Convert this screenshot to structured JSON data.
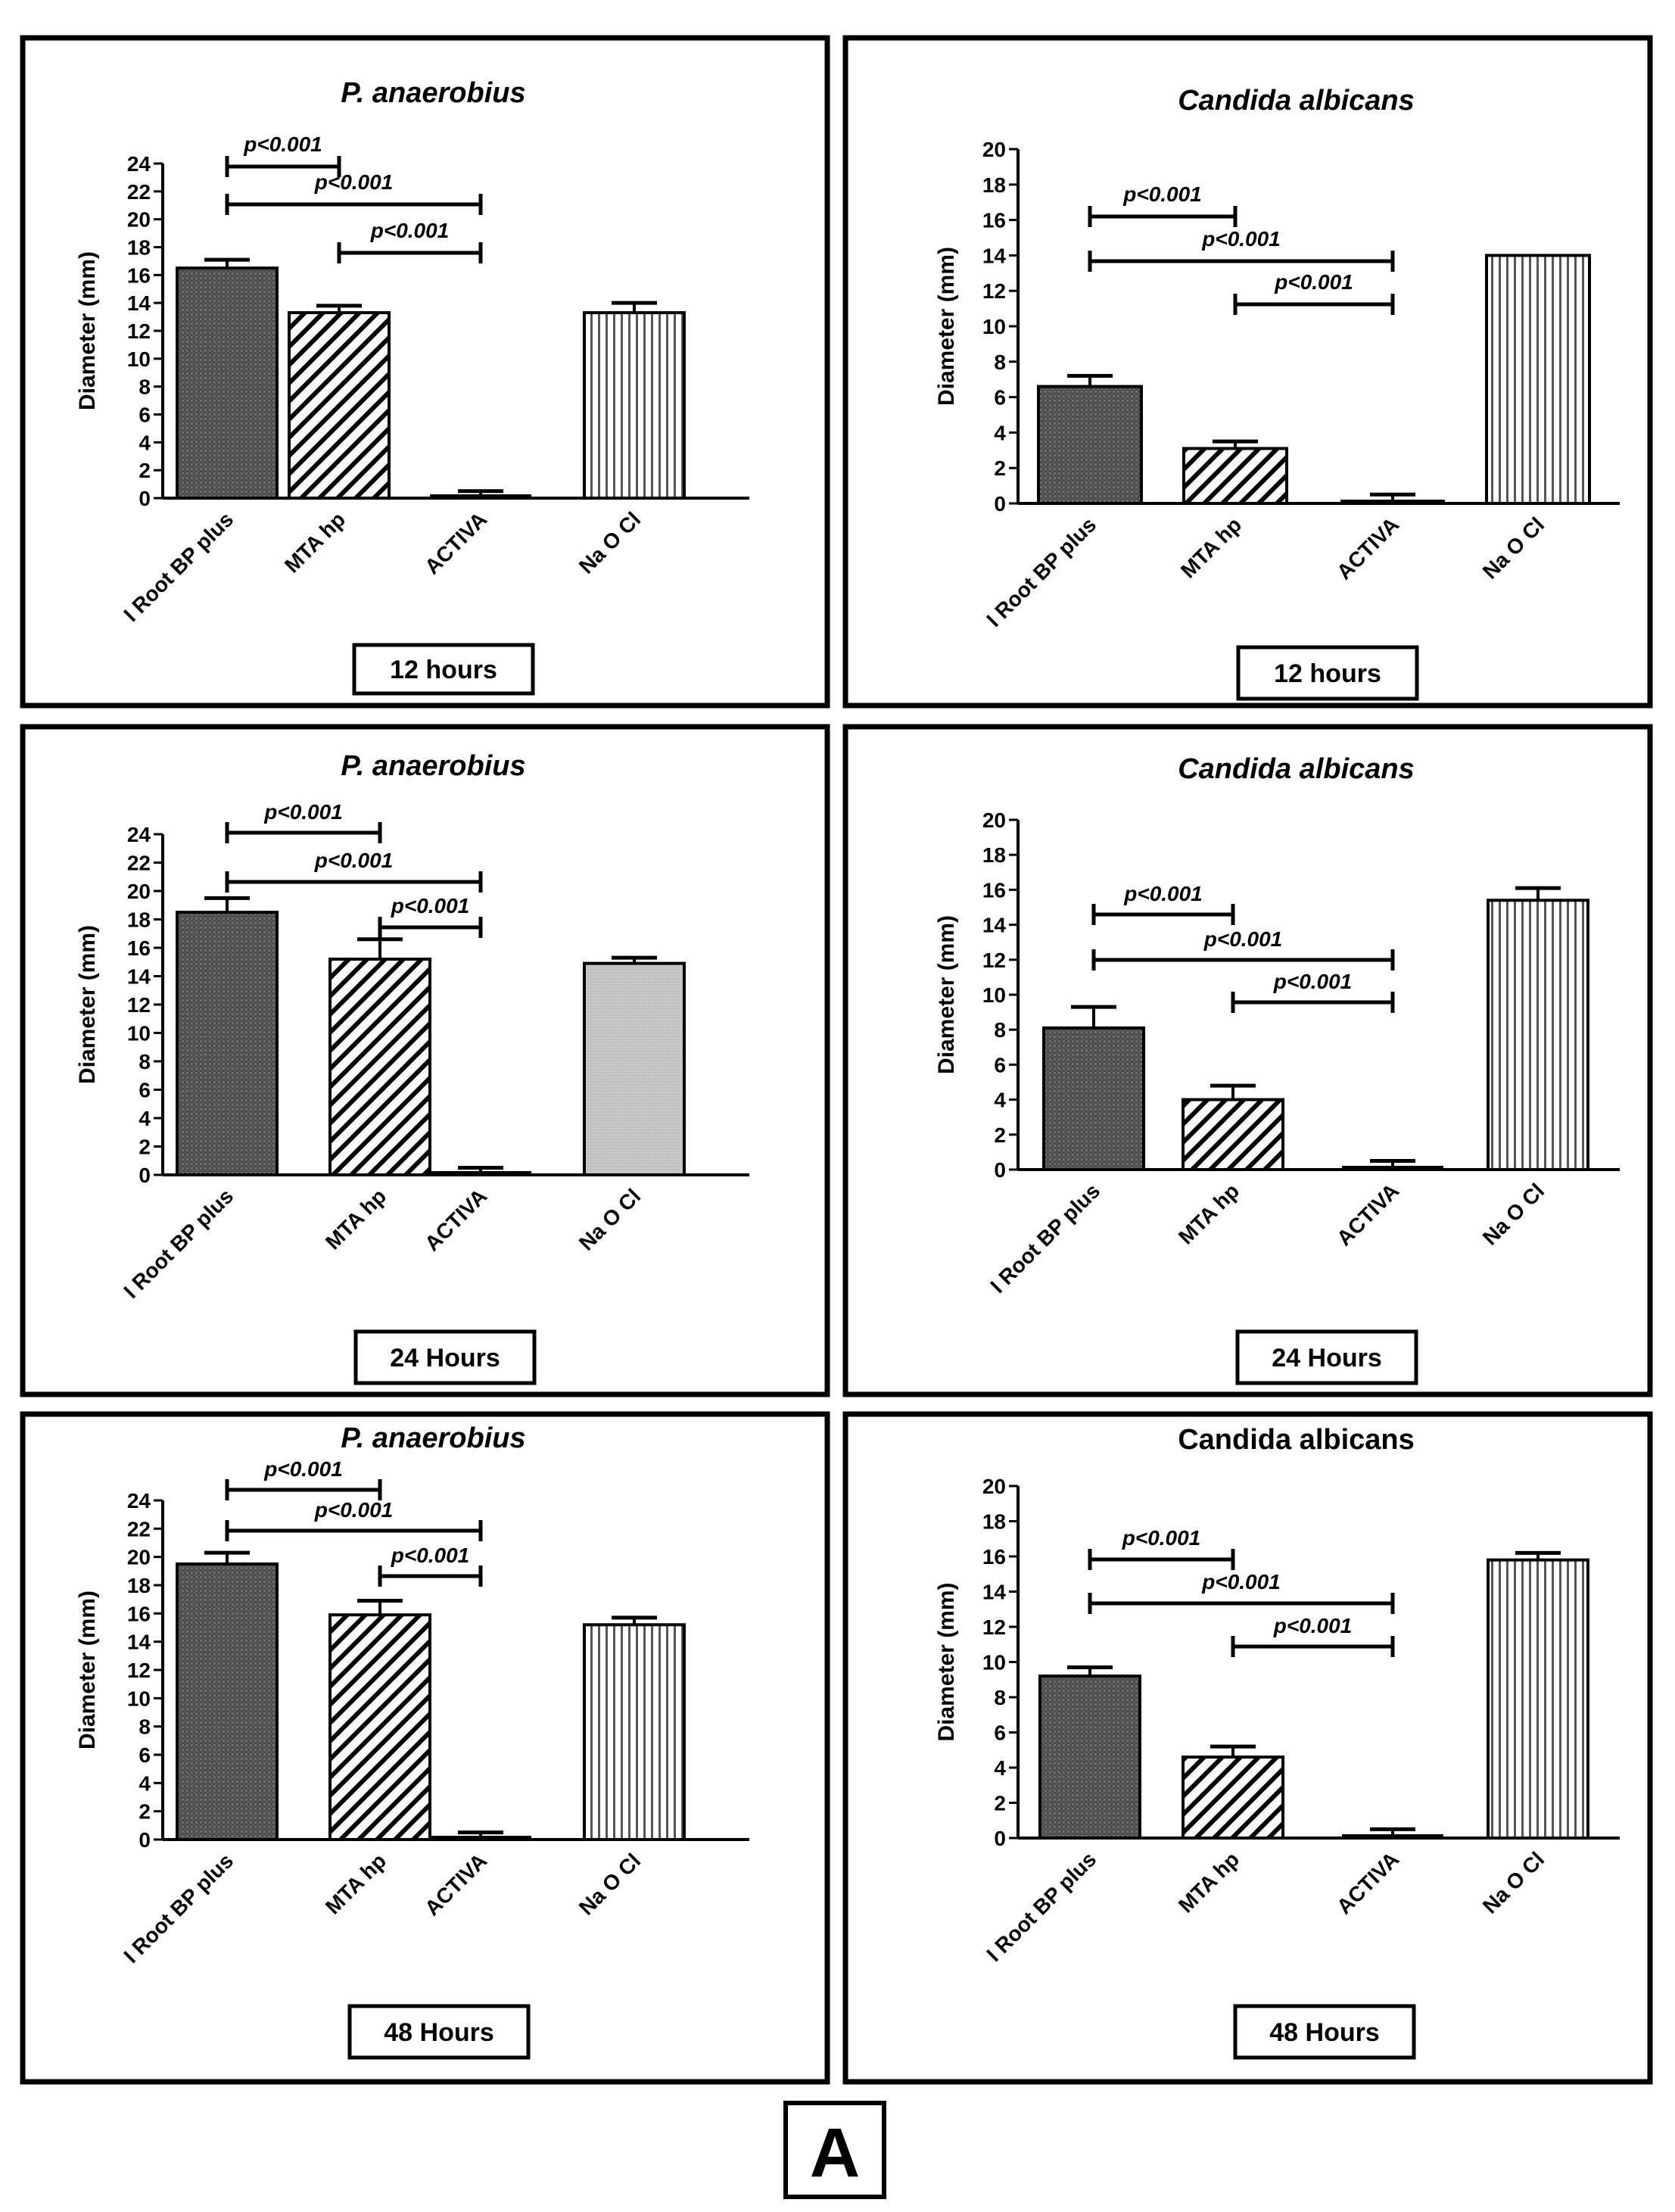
{
  "figure_label": "A",
  "chart_data": [
    {
      "type": "bar",
      "title": "P. anaerobius",
      "title_italic": true,
      "ylabel": "Diameter (mm)",
      "ylim": [
        0,
        24
      ],
      "yticks": [
        0,
        2,
        4,
        6,
        8,
        10,
        12,
        14,
        16,
        18,
        20,
        22,
        24
      ],
      "categories": [
        "I Root BP plus",
        "MTA hp",
        "ACTIVA",
        "Na O Cl"
      ],
      "series": [
        {
          "values": [
            16.5,
            13.3,
            0.1,
            13.3
          ],
          "errors": [
            0.6,
            0.5,
            0.4,
            0.7
          ]
        }
      ],
      "comparisons": [
        {
          "label": "p<0.001",
          "from": 0,
          "to": 1
        },
        {
          "label": "p<0.001",
          "from": 0,
          "to": 2
        },
        {
          "label": "p<0.001",
          "from": 1,
          "to": 2
        }
      ],
      "time_label": "12 hours"
    },
    {
      "type": "bar",
      "title": "Candida albicans",
      "title_italic": true,
      "ylabel": "Diameter (mm)",
      "ylim": [
        0,
        20
      ],
      "yticks": [
        0,
        2,
        4,
        6,
        8,
        10,
        12,
        14,
        16,
        18,
        20
      ],
      "categories": [
        "I Root BP plus",
        "MTA hp",
        "ACTIVA",
        "Na O Cl"
      ],
      "series": [
        {
          "values": [
            6.6,
            3.1,
            0.1,
            14.0
          ],
          "errors": [
            0.6,
            0.4,
            0.4,
            0.0
          ]
        }
      ],
      "comparisons": [
        {
          "label": "p<0.001",
          "from": 0,
          "to": 1
        },
        {
          "label": "p<0.001",
          "from": 0,
          "to": 2
        },
        {
          "label": "p<0.001",
          "from": 1,
          "to": 2
        }
      ],
      "time_label": "12 hours"
    },
    {
      "type": "bar",
      "title": "P. anaerobius",
      "title_italic": true,
      "ylabel": "Diameter (mm)",
      "ylim": [
        0,
        24
      ],
      "yticks": [
        0,
        2,
        4,
        6,
        8,
        10,
        12,
        14,
        16,
        18,
        20,
        22,
        24
      ],
      "categories": [
        "I Root BP plus",
        "MTA hp",
        "ACTIVA",
        "Na O Cl"
      ],
      "series": [
        {
          "values": [
            18.5,
            15.2,
            0.1,
            14.9
          ],
          "errors": [
            1.0,
            1.4,
            0.4,
            0.4
          ]
        }
      ],
      "comparisons": [
        {
          "label": "p<0.001",
          "from": 0,
          "to": 1
        },
        {
          "label": "p<0.001",
          "from": 0,
          "to": 2
        },
        {
          "label": "p<0.001",
          "from": 1,
          "to": 2
        }
      ],
      "time_label": "24 Hours"
    },
    {
      "type": "bar",
      "title": "Candida albicans",
      "title_italic": true,
      "ylabel": "Diameter (mm)",
      "ylim": [
        0,
        20
      ],
      "yticks": [
        0,
        2,
        4,
        6,
        8,
        10,
        12,
        14,
        16,
        18,
        20
      ],
      "categories": [
        "I Root BP plus",
        "MTA hp",
        "ACTIVA",
        "Na O Cl"
      ],
      "series": [
        {
          "values": [
            8.1,
            4.0,
            0.1,
            15.4
          ],
          "errors": [
            1.2,
            0.8,
            0.4,
            0.7
          ]
        }
      ],
      "comparisons": [
        {
          "label": "p<0.001",
          "from": 0,
          "to": 1
        },
        {
          "label": "p<0.001",
          "from": 0,
          "to": 2
        },
        {
          "label": "p<0.001",
          "from": 1,
          "to": 2
        }
      ],
      "time_label": "24 Hours"
    },
    {
      "type": "bar",
      "title": "P. anaerobius",
      "title_italic": true,
      "ylabel": "Diameter (mm)",
      "ylim": [
        0,
        24
      ],
      "yticks": [
        0,
        2,
        4,
        6,
        8,
        10,
        12,
        14,
        16,
        18,
        20,
        22,
        24
      ],
      "categories": [
        "I Root BP plus",
        "MTA hp",
        "ACTIVA",
        "Na O Cl"
      ],
      "series": [
        {
          "values": [
            19.5,
            15.9,
            0.1,
            15.2
          ],
          "errors": [
            0.8,
            1.0,
            0.4,
            0.5
          ]
        }
      ],
      "comparisons": [
        {
          "label": "p<0.001",
          "from": 0,
          "to": 1
        },
        {
          "label": "p<0.001",
          "from": 0,
          "to": 2
        },
        {
          "label": "p<0.001",
          "from": 1,
          "to": 2
        }
      ],
      "time_label": "48 Hours"
    },
    {
      "type": "bar",
      "title": "Candida albicans",
      "title_italic": false,
      "ylabel": "Diameter (mm)",
      "ylim": [
        0,
        20
      ],
      "yticks": [
        0,
        2,
        4,
        6,
        8,
        10,
        12,
        14,
        16,
        18,
        20
      ],
      "categories": [
        "I Root BP plus",
        "MTA hp",
        "ACTIVA",
        "Na O Cl"
      ],
      "series": [
        {
          "values": [
            9.2,
            4.6,
            0.1,
            15.8
          ],
          "errors": [
            0.5,
            0.6,
            0.4,
            0.4
          ]
        }
      ],
      "comparisons": [
        {
          "label": "p<0.001",
          "from": 0,
          "to": 1
        },
        {
          "label": "p<0.001",
          "from": 0,
          "to": 2
        },
        {
          "label": "p<0.001",
          "from": 1,
          "to": 2
        }
      ],
      "time_label": "48 Hours"
    }
  ]
}
